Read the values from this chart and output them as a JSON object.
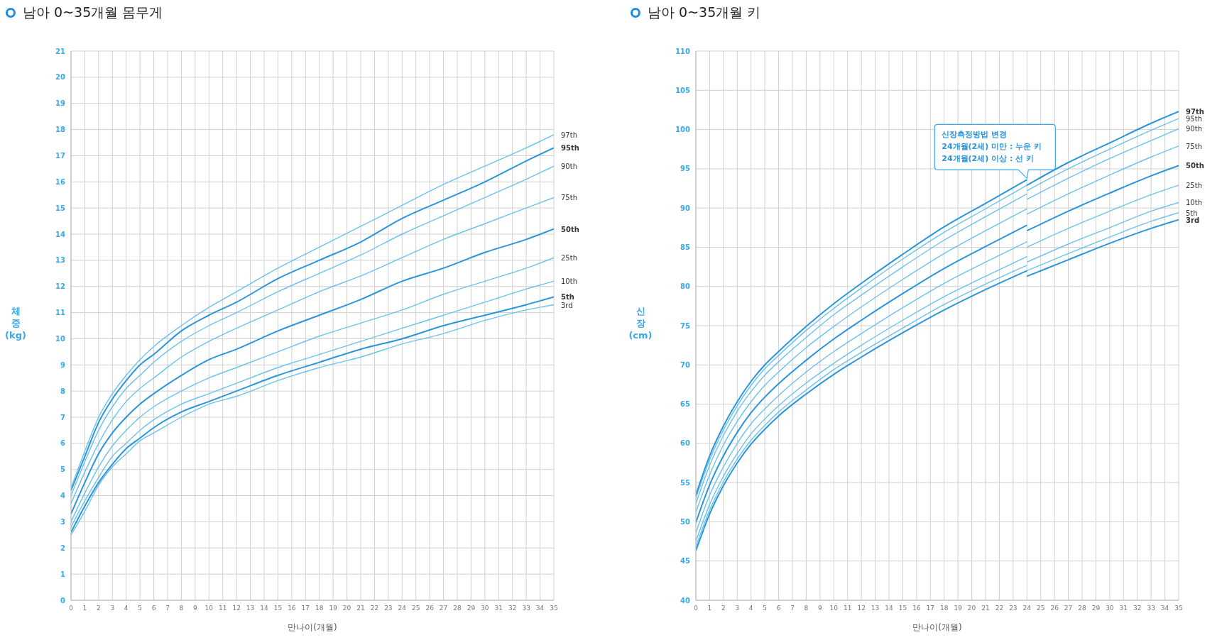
{
  "chart_data": [
    {
      "type": "line",
      "title": "남아 0~35개월 몸무게",
      "xlabel": "만나이(개월)",
      "ylabel": "체중 (kg)",
      "x": [
        0,
        1,
        2,
        3,
        4,
        5,
        6,
        8,
        10,
        12,
        15,
        18,
        21,
        24,
        27,
        30,
        33,
        35
      ],
      "xlim": [
        0,
        35
      ],
      "xticks": [
        0,
        1,
        2,
        3,
        4,
        5,
        6,
        7,
        8,
        9,
        10,
        11,
        12,
        13,
        14,
        15,
        16,
        17,
        18,
        19,
        20,
        21,
        22,
        23,
        24,
        25,
        26,
        27,
        28,
        29,
        30,
        31,
        32,
        33,
        34,
        35
      ],
      "ylim": [
        0,
        21
      ],
      "yticks": [
        0,
        1,
        2,
        3,
        4,
        5,
        6,
        7,
        8,
        9,
        10,
        11,
        12,
        13,
        14,
        15,
        16,
        17,
        18,
        19,
        20,
        21
      ],
      "grid": true,
      "series": [
        {
          "name": "3rd",
          "color": "#6ac2ee",
          "values": [
            2.5,
            3.4,
            4.4,
            5.1,
            5.6,
            6.1,
            6.4,
            7.0,
            7.5,
            7.8,
            8.4,
            8.9,
            9.3,
            9.8,
            10.2,
            10.7,
            11.1,
            11.3
          ]
        },
        {
          "name": "5th",
          "color": "#2b95dc",
          "values": [
            2.6,
            3.6,
            4.5,
            5.2,
            5.8,
            6.2,
            6.6,
            7.2,
            7.6,
            8.0,
            8.6,
            9.1,
            9.6,
            10.0,
            10.5,
            10.9,
            11.3,
            11.6
          ]
        },
        {
          "name": "10th",
          "color": "#6ac2ee",
          "values": [
            2.8,
            3.8,
            4.7,
            5.5,
            6.0,
            6.5,
            6.9,
            7.5,
            7.9,
            8.3,
            8.9,
            9.4,
            9.9,
            10.4,
            10.9,
            11.4,
            11.9,
            12.2
          ]
        },
        {
          "name": "25th",
          "color": "#6ac2ee",
          "values": [
            3.0,
            4.1,
            5.1,
            5.9,
            6.5,
            7.0,
            7.4,
            8.0,
            8.5,
            8.9,
            9.5,
            10.1,
            10.6,
            11.1,
            11.7,
            12.2,
            12.7,
            13.1
          ]
        },
        {
          "name": "50th",
          "color": "#2b95dc",
          "values": [
            3.3,
            4.5,
            5.6,
            6.4,
            7.0,
            7.5,
            7.9,
            8.6,
            9.2,
            9.6,
            10.3,
            10.9,
            11.5,
            12.2,
            12.7,
            13.3,
            13.8,
            14.2
          ]
        },
        {
          "name": "75th",
          "color": "#6ac2ee",
          "values": [
            3.7,
            4.9,
            6.0,
            6.9,
            7.6,
            8.1,
            8.5,
            9.3,
            9.9,
            10.4,
            11.1,
            11.8,
            12.4,
            13.1,
            13.8,
            14.4,
            15.0,
            15.4
          ]
        },
        {
          "name": "90th",
          "color": "#6ac2ee",
          "values": [
            4.0,
            5.3,
            6.5,
            7.4,
            8.1,
            8.6,
            9.1,
            9.9,
            10.5,
            11.0,
            11.8,
            12.5,
            13.2,
            14.0,
            14.7,
            15.4,
            16.1,
            16.6
          ]
        },
        {
          "name": "95th",
          "color": "#2b95dc",
          "values": [
            4.2,
            5.5,
            6.8,
            7.7,
            8.4,
            9.0,
            9.4,
            10.3,
            10.9,
            11.4,
            12.3,
            13.0,
            13.7,
            14.6,
            15.3,
            16.0,
            16.8,
            17.3
          ]
        },
        {
          "name": "97th",
          "color": "#6ac2ee",
          "values": [
            4.3,
            5.7,
            7.0,
            7.9,
            8.6,
            9.2,
            9.7,
            10.5,
            11.2,
            11.8,
            12.7,
            13.5,
            14.3,
            15.1,
            15.9,
            16.6,
            17.3,
            17.8
          ]
        }
      ]
    },
    {
      "type": "line",
      "title": "남아 0~35개월 키",
      "xlabel": "만나이(개월)",
      "ylabel": "신장 (cm)",
      "xlim": [
        0,
        35
      ],
      "xticks": [
        0,
        1,
        2,
        3,
        4,
        5,
        6,
        7,
        8,
        9,
        10,
        11,
        12,
        13,
        14,
        15,
        16,
        17,
        18,
        19,
        20,
        21,
        22,
        23,
        24,
        25,
        26,
        27,
        28,
        29,
        30,
        31,
        32,
        33,
        34,
        35
      ],
      "ylim": [
        40,
        110
      ],
      "yticks": [
        40,
        45,
        50,
        55,
        60,
        65,
        70,
        75,
        80,
        85,
        90,
        95,
        100,
        105,
        110
      ],
      "grid": true,
      "annotations": [
        {
          "text": "신장측정방법 변경\n24개월(2세) 미만 : 누운 키\n24개월(2세) 이상 : 선 키",
          "x": 24,
          "y": 93.6
        }
      ],
      "series": [
        {
          "color": "#2b95dc",
          "x": [
            0,
            1,
            2,
            3,
            4,
            5,
            6,
            8,
            10,
            12,
            15,
            18,
            21,
            24
          ],
          "values": [
            46.3,
            51.0,
            54.6,
            57.5,
            59.9,
            61.8,
            63.5,
            66.3,
            68.8,
            71.0,
            74.1,
            77.0,
            79.6,
            82.0
          ]
        },
        {
          "color": "#6ac2ee",
          "x": [
            0,
            1,
            2,
            3,
            4,
            5,
            6,
            8,
            10,
            12,
            15,
            18,
            21,
            24
          ],
          "values": [
            46.8,
            51.5,
            55.1,
            58.0,
            60.4,
            62.3,
            64.0,
            66.8,
            69.4,
            71.6,
            74.7,
            77.7,
            80.3,
            82.7
          ]
        },
        {
          "color": "#6ac2ee",
          "x": [
            0,
            1,
            2,
            3,
            4,
            5,
            6,
            8,
            10,
            12,
            15,
            18,
            21,
            24
          ],
          "values": [
            47.5,
            52.2,
            55.8,
            58.7,
            61.2,
            63.1,
            64.8,
            67.7,
            70.2,
            72.5,
            75.7,
            78.7,
            81.3,
            83.8
          ]
        },
        {
          "color": "#6ac2ee",
          "x": [
            0,
            1,
            2,
            3,
            4,
            5,
            6,
            8,
            10,
            12,
            15,
            18,
            21,
            24
          ],
          "values": [
            48.6,
            53.4,
            57.0,
            60.0,
            62.5,
            64.4,
            66.1,
            69.1,
            71.7,
            74.0,
            77.3,
            80.4,
            83.1,
            85.7
          ]
        },
        {
          "color": "#2b95dc",
          "x": [
            0,
            1,
            2,
            3,
            4,
            5,
            6,
            8,
            10,
            12,
            15,
            18,
            21,
            24
          ],
          "values": [
            49.9,
            54.7,
            58.4,
            61.4,
            63.9,
            65.9,
            67.6,
            70.6,
            73.3,
            75.7,
            79.1,
            82.3,
            85.1,
            87.8
          ]
        },
        {
          "color": "#6ac2ee",
          "x": [
            0,
            1,
            2,
            3,
            4,
            5,
            6,
            8,
            10,
            12,
            15,
            18,
            21,
            24
          ],
          "values": [
            51.2,
            56.0,
            59.8,
            62.8,
            65.3,
            67.4,
            69.1,
            72.2,
            74.9,
            77.4,
            80.9,
            84.2,
            87.1,
            89.9
          ]
        },
        {
          "color": "#6ac2ee",
          "x": [
            0,
            1,
            2,
            3,
            4,
            5,
            6,
            8,
            10,
            12,
            15,
            18,
            21,
            24
          ],
          "values": [
            52.3,
            57.2,
            61.0,
            64.1,
            66.6,
            68.7,
            70.4,
            73.5,
            76.4,
            78.9,
            82.5,
            85.9,
            88.9,
            91.8
          ]
        },
        {
          "color": "#6ac2ee",
          "x": [
            0,
            1,
            2,
            3,
            4,
            5,
            6,
            8,
            10,
            12,
            15,
            18,
            21,
            24
          ],
          "values": [
            53.0,
            57.9,
            61.7,
            64.8,
            67.4,
            69.5,
            71.2,
            74.4,
            77.2,
            79.8,
            83.5,
            86.9,
            89.9,
            92.9
          ]
        },
        {
          "color": "#2b95dc",
          "x": [
            0,
            1,
            2,
            3,
            4,
            5,
            6,
            8,
            10,
            12,
            15,
            18,
            21,
            24
          ],
          "values": [
            53.4,
            58.4,
            62.2,
            65.3,
            67.9,
            70.0,
            71.7,
            74.9,
            77.8,
            80.4,
            84.1,
            87.6,
            90.6,
            93.6
          ]
        },
        {
          "name": "3rd",
          "color": "#2b95dc",
          "x": [
            24,
            27,
            30,
            33,
            35
          ],
          "values": [
            81.3,
            83.4,
            85.5,
            87.4,
            88.5
          ]
        },
        {
          "name": "5th",
          "color": "#6ac2ee",
          "x": [
            24,
            27,
            30,
            33,
            35
          ],
          "values": [
            82.0,
            84.2,
            86.3,
            88.3,
            89.4
          ]
        },
        {
          "name": "10th",
          "color": "#6ac2ee",
          "x": [
            24,
            27,
            30,
            33,
            35
          ],
          "values": [
            83.1,
            85.4,
            87.5,
            89.6,
            90.7
          ]
        },
        {
          "name": "25th",
          "color": "#6ac2ee",
          "x": [
            24,
            27,
            30,
            33,
            35
          ],
          "values": [
            85.0,
            87.4,
            89.6,
            91.7,
            92.9
          ]
        },
        {
          "name": "50th",
          "color": "#2b95dc",
          "x": [
            24,
            27,
            30,
            33,
            35
          ],
          "values": [
            87.1,
            89.6,
            91.9,
            94.1,
            95.4
          ]
        },
        {
          "name": "75th",
          "color": "#6ac2ee",
          "x": [
            24,
            27,
            30,
            33,
            35
          ],
          "values": [
            89.2,
            91.8,
            94.2,
            96.5,
            97.9
          ]
        },
        {
          "name": "90th",
          "color": "#6ac2ee",
          "x": [
            24,
            27,
            30,
            33,
            35
          ],
          "values": [
            91.1,
            93.8,
            96.3,
            98.6,
            100.1
          ]
        },
        {
          "name": "95th",
          "color": "#6ac2ee",
          "x": [
            24,
            27,
            30,
            33,
            35
          ],
          "values": [
            92.2,
            95.0,
            97.5,
            99.9,
            101.4
          ]
        },
        {
          "name": "97th",
          "color": "#2b95dc",
          "x": [
            24,
            27,
            30,
            33,
            35
          ],
          "values": [
            92.9,
            95.8,
            98.3,
            100.8,
            102.3
          ]
        }
      ]
    }
  ]
}
